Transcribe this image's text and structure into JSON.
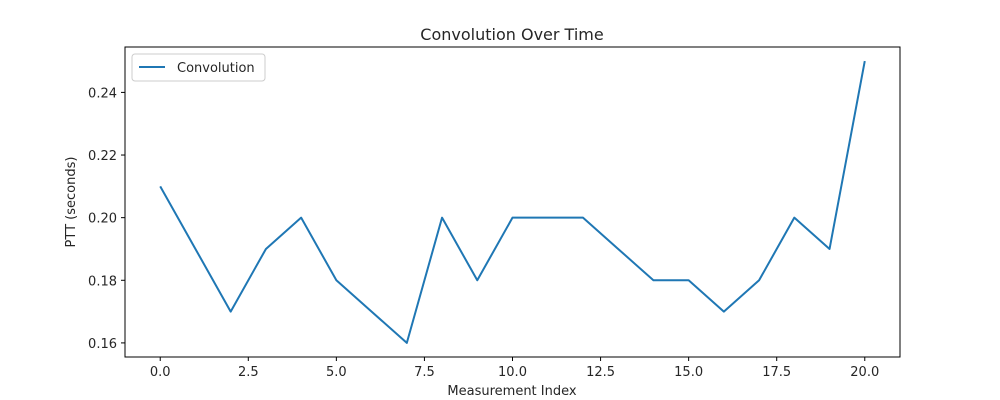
{
  "chart_data": {
    "type": "line",
    "title": "Convolution Over Time",
    "xlabel": "Measurement Index",
    "ylabel": "PTT (seconds)",
    "xlim": [
      -1.0,
      21.0
    ],
    "ylim": [
      0.1555,
      0.2545
    ],
    "x_ticks": [
      0.0,
      2.5,
      5.0,
      7.5,
      10.0,
      12.5,
      15.0,
      17.5,
      20.0
    ],
    "x_tick_labels": [
      "0.0",
      "2.5",
      "5.0",
      "7.5",
      "10.0",
      "12.5",
      "15.0",
      "17.5",
      "20.0"
    ],
    "y_ticks": [
      0.16,
      0.18,
      0.2,
      0.22,
      0.24
    ],
    "y_tick_labels": [
      "0.16",
      "0.18",
      "0.20",
      "0.22",
      "0.24"
    ],
    "grid": false,
    "legend_position": "top-left",
    "series": [
      {
        "name": "Convolution",
        "color": "#1f77b4",
        "x": [
          0,
          1,
          2,
          3,
          4,
          5,
          6,
          7,
          8,
          9,
          10,
          11,
          12,
          13,
          14,
          15,
          16,
          17,
          18,
          19,
          20
        ],
        "values": [
          0.21,
          0.19,
          0.17,
          0.19,
          0.2,
          0.18,
          0.17,
          0.16,
          0.2,
          0.18,
          0.2,
          0.2,
          0.2,
          0.19,
          0.18,
          0.18,
          0.17,
          0.18,
          0.2,
          0.19,
          0.25
        ]
      }
    ]
  }
}
